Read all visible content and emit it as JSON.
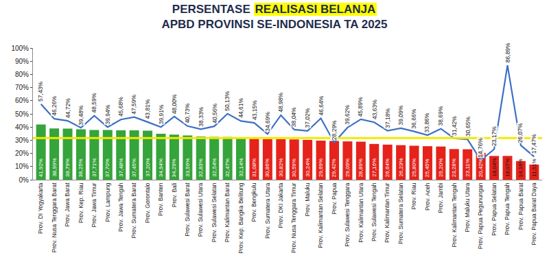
{
  "chart_data": {
    "type": "bar",
    "title": "PERSENTASE REALISASI BELANJA APBD PROVINSI SE-INDONESIA TA 2025",
    "highlight": "REALISASI BELANJA",
    "categories": [
      "Prov. DI Yogyakarta",
      "Prov. Nusa Tenggara Barat",
      "Prov. Jawa Barat",
      "Prov. Kep. Riau",
      "Prov. Jawa Timur",
      "Prov. Lampung",
      "Prov. Jawa Tengah",
      "Prov. Sumatera Barat",
      "Prov. Gorontalo",
      "Prov. Banten",
      "Prov. Bali",
      "Prov. Sulawesi Barat",
      "Prov. Sulawesi Utara",
      "Prov. Sulawesi Selatan",
      "Prov. Kalimantan Barat",
      "Prov. Kep. Bangka Belitung",
      "Prov. Bengkulu",
      "Prov. Sumatera Utara",
      "Prov. DKI Jakarta",
      "Prov. Nusa Tenggara Timur",
      "Prov. Maluku",
      "Prov. Kalimantan Selatan",
      "Prov. Papua",
      "Prov. Sulawesi Tenggara",
      "Prov. Kalimantan Utara",
      "Prov. Sulawesi Tengah",
      "Prov. Kalimantan Timur",
      "Prov. Sumatera Selatan",
      "Prov. Riau",
      "Prov. Aceh",
      "Prov. Jambi",
      "Prov. Kalimantan Tengah",
      "Prov. Maluku Utara",
      "Prov. Papua Pegunungan",
      "Prov. Papua Selatan",
      "Prov. Papua Tengah",
      "Prov. Papua Barat",
      "Prov. Papua Barat Daya"
    ],
    "series": [
      {
        "type": "bar",
        "colors": [
          "#35a43a",
          "#35a43a",
          "#35a43a",
          "#35a43a",
          "#35a43a",
          "#35a43a",
          "#35a43a",
          "#35a43a",
          "#35a43a",
          "#35a43a",
          "#35a43a",
          "#35a43a",
          "#35a43a",
          "#35a43a",
          "#35a43a",
          "#35a43a",
          "#e5231b",
          "#e5231b",
          "#e5231b",
          "#e5231b",
          "#e5231b",
          "#e5231b",
          "#e5231b",
          "#e5231b",
          "#e5231b",
          "#e5231b",
          "#e5231b",
          "#e5231b",
          "#e5231b",
          "#e5231b",
          "#e5231b",
          "#e5231b",
          "#e5231b",
          "#e5231b",
          "#e5231b",
          "#e5231b",
          "#e5231b",
          "#e5231b"
        ],
        "values": [
          41.92,
          38.99,
          38.79,
          38.25,
          37.71,
          37.7,
          37.48,
          37.45,
          37.2,
          34.94,
          34.29,
          33.56,
          32.83,
          32.54,
          32.47,
          32.14,
          31.08,
          30.86,
          30.82,
          30.59,
          30.24,
          29.69,
          29.42,
          29.09,
          28.89,
          27.16,
          26.64,
          26.23,
          25.8,
          25.45,
          25.2,
          23.28,
          23.11,
          20.42,
          18.04,
          18.07,
          14.16,
          11.51
        ],
        "value_labels": [
          "41,92%",
          "38,99%",
          "38,79%",
          "38,25%",
          "37,71%",
          "37,70%",
          "37,48%",
          "37,45%",
          "37,20%",
          "34,94%",
          "34,29%",
          "33,56%",
          "32,83%",
          "32,54%",
          "32,47%",
          "32,14%",
          "31,08%",
          "30,86%",
          "30,82%",
          "30,59%",
          "30,24%",
          "29,69%",
          "29,42%",
          "29,09%",
          "28,89%",
          "27,16%",
          "26,64%",
          "26,23%",
          "25,80%",
          "25,45%",
          "25,20%",
          "23,28%",
          "23,11%",
          "20,42%",
          "18,04%",
          "18,07%",
          "14,16%",
          "11,51%"
        ]
      },
      {
        "type": "line",
        "color": "#3d6fc4",
        "values": [
          57.43,
          46.26,
          44.72,
          39.48,
          48.59,
          39.94,
          45.68,
          47.59,
          43.81,
          39.91,
          48.0,
          40.73,
          38.33,
          40.56,
          50.13,
          44.61,
          43.15,
          34.69,
          48.98,
          38.04,
          37.02,
          46.64,
          28.29,
          39.62,
          45.89,
          43.63,
          37.18,
          39.09,
          36.66,
          33.86,
          38.69,
          31.42,
          30.65,
          14.76,
          23.17,
          86.89,
          26.07,
          17.47
        ],
        "value_labels": [
          "57,43%",
          "46,26%",
          "44,72%",
          "39,48%",
          "48,59%",
          "39,94%",
          "45,68%",
          "47,59%",
          "43,81%",
          "39,91%",
          "48,00%",
          "40,73%",
          "38,33%",
          "40,56%",
          "50,13%",
          "44,61%",
          "43,15%",
          "34,69%",
          "48,98%",
          "38,04%",
          "37,02%",
          "46,64%",
          "28,29%",
          "39,62%",
          "45,89%",
          "43,63%",
          "37,18%",
          "39,09%",
          "36,66%",
          "33,86%",
          "38,69%",
          "31,42%",
          "30,65%",
          "14,76%",
          "23,17%",
          "86,89%",
          "26,07%",
          "17,47%"
        ]
      }
    ],
    "reference_line": {
      "value": 31.7,
      "color": "#f2ea00"
    },
    "ylim": [
      0,
      100
    ],
    "yticks": [
      {
        "value": 0,
        "label": "0%"
      },
      {
        "value": 10,
        "label": "10%"
      },
      {
        "value": 20,
        "label": "20%"
      },
      {
        "value": 30,
        "label": "30%"
      },
      {
        "value": 40,
        "label": "40%"
      },
      {
        "value": 50,
        "label": "50%"
      },
      {
        "value": 60,
        "label": "60%"
      },
      {
        "value": 70,
        "label": "70%"
      },
      {
        "value": 80,
        "label": "80%"
      },
      {
        "value": 90,
        "label": "90%"
      },
      {
        "value": 100,
        "label": "100%"
      }
    ],
    "grid": false,
    "data_labels": true
  }
}
